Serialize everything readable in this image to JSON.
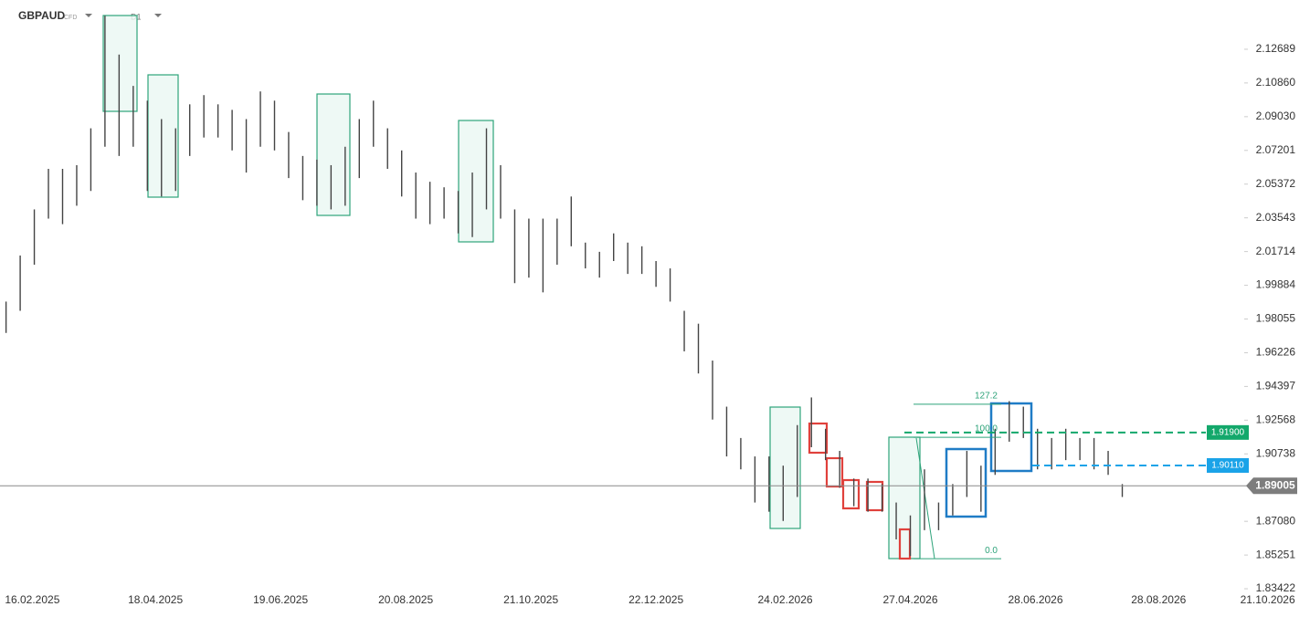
{
  "header": {
    "symbol": "GBPAUD",
    "kind": "CFD",
    "interval": "D1"
  },
  "chart_data": {
    "type": "range",
    "x": [
      "03.02.2025",
      "10.02.2025",
      "17.02.2025",
      "24.02.2025",
      "03.03.2025",
      "10.03.2025",
      "17.03.2025",
      "24.03.2025",
      "31.03.2025",
      "07.04.2025",
      "14.04.2025",
      "21.04.2025",
      "28.04.2025",
      "05.05.2025",
      "12.05.2025",
      "19.05.2025",
      "26.05.2025",
      "02.06.2025",
      "09.06.2025",
      "16.06.2025",
      "23.06.2025",
      "30.06.2025",
      "07.07.2025",
      "14.07.2025",
      "21.07.2025",
      "28.07.2025",
      "04.08.2025",
      "11.08.2025",
      "18.08.2025",
      "25.08.2025",
      "01.09.2025",
      "08.09.2025",
      "15.09.2025",
      "22.09.2025",
      "29.09.2025",
      "06.10.2025",
      "13.10.2025",
      "20.10.2025",
      "27.10.2025",
      "03.11.2025",
      "10.11.2025",
      "17.11.2025",
      "24.11.2025",
      "01.12.2025",
      "08.12.2025",
      "15.12.2025",
      "22.12.2025",
      "29.12.2025",
      "05.01.2026",
      "12.01.2026",
      "19.01.2026",
      "26.01.2026",
      "02.02.2026",
      "09.02.2026",
      "16.02.2026",
      "23.02.2026",
      "02.03.2026",
      "09.03.2026",
      "16.03.2026",
      "23.03.2026",
      "30.03.2026",
      "06.04.2026",
      "13.04.2026",
      "20.04.2026",
      "27.04.2026",
      "04.05.2026",
      "11.05.2026",
      "18.05.2026",
      "25.05.2026",
      "01.06.2026",
      "08.06.2026",
      "15.06.2026",
      "22.06.2026",
      "29.06.2026",
      "06.07.2026",
      "13.07.2026",
      "20.07.2026",
      "27.07.2026",
      "03.08.2026",
      "10.08.2026"
    ],
    "series": [
      {
        "name": "high",
        "color": "#444",
        "values": [
          1.99,
          2.015,
          2.04,
          2.062,
          2.062,
          2.064,
          2.084,
          2.145,
          2.124,
          2.107,
          2.099,
          2.089,
          2.084,
          2.097,
          2.102,
          2.097,
          2.094,
          2.089,
          2.104,
          2.099,
          2.082,
          2.069,
          2.067,
          2.064,
          2.074,
          2.089,
          2.099,
          2.084,
          2.072,
          2.06,
          2.055,
          2.052,
          2.05,
          2.06,
          2.084,
          2.064,
          2.04,
          2.035,
          2.035,
          2.035,
          2.047,
          2.022,
          2.017,
          2.027,
          2.022,
          2.02,
          2.012,
          2.008,
          1.985,
          1.978,
          1.958,
          1.933,
          1.916,
          1.906,
          1.906,
          1.901,
          1.923,
          1.938,
          1.921,
          1.909,
          1.894,
          1.894,
          1.891,
          1.881,
          1.874,
          1.899,
          1.881,
          1.891,
          1.909,
          1.901,
          1.921,
          1.936,
          1.933,
          1.921,
          1.916,
          1.921,
          1.916,
          1.916,
          1.909,
          1.891
        ]
      },
      {
        "name": "low",
        "color": "#444",
        "values": [
          1.973,
          1.985,
          2.01,
          2.035,
          2.032,
          2.042,
          2.05,
          2.074,
          2.069,
          2.074,
          2.05,
          2.047,
          2.05,
          2.069,
          2.079,
          2.079,
          2.072,
          2.06,
          2.074,
          2.072,
          2.057,
          2.045,
          2.042,
          2.04,
          2.042,
          2.057,
          2.074,
          2.062,
          2.047,
          2.035,
          2.032,
          2.035,
          2.027,
          2.025,
          2.04,
          2.035,
          2.0,
          2.003,
          1.995,
          2.01,
          2.02,
          2.008,
          2.003,
          2.012,
          2.005,
          2.005,
          1.998,
          1.99,
          1.963,
          1.951,
          1.926,
          1.906,
          1.899,
          1.881,
          1.876,
          1.871,
          1.884,
          1.911,
          1.904,
          1.889,
          1.879,
          1.876,
          1.876,
          1.861,
          1.852,
          1.866,
          1.866,
          1.874,
          1.884,
          1.876,
          1.896,
          1.914,
          1.916,
          1.899,
          1.899,
          1.904,
          1.904,
          1.899,
          1.896,
          1.884
        ]
      }
    ],
    "xlim": [
      "31.01.2025",
      "11.11.2026"
    ],
    "xticks": [
      "16.02.2025",
      "18.04.2025",
      "19.06.2025",
      "20.08.2025",
      "21.10.2025",
      "22.12.2025",
      "24.02.2026",
      "27.04.2026",
      "28.06.2026",
      "28.08.2026",
      "21.10.2026"
    ],
    "ylim": [
      1.8189,
      2.1536
    ],
    "yticks": [
      2.12689,
      {
        "value": 2.1086,
        "label": "2.10860"
      },
      {
        "value": 2.0903,
        "label": "2.09030"
      },
      2.07201,
      2.05372,
      2.03543,
      2.01714,
      1.99884,
      1.98055,
      1.96226,
      1.94397,
      1.92568,
      1.90738,
      {
        "value": 1.8708,
        "label": "1.87080"
      },
      1.85251,
      1.83422
    ],
    "current_price": 1.89005,
    "price_lines": [
      {
        "value": 1.919,
        "label": "1.91900",
        "color": "#13a86b"
      },
      {
        "value": 1.9011,
        "label": "1.90110",
        "color": "#1aa3e8"
      }
    ],
    "fib": {
      "price_0": 1.85051,
      "price_100": 1.91639,
      "color": "#2ea37a",
      "levels": [
        127.2,
        {
          "value": 100,
          "label": "100.0"
        },
        {
          "value": 0,
          "label": "0.0"
        }
      ]
    }
  }
}
